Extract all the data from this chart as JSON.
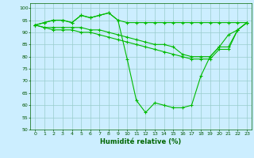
{
  "xlabel": "Humidité relative (%)",
  "background_color": "#cceeff",
  "grid_color": "#99cccc",
  "line_color": "#00bb00",
  "ylim": [
    50,
    102
  ],
  "xlim": [
    -0.5,
    23.5
  ],
  "yticks": [
    50,
    55,
    60,
    65,
    70,
    75,
    80,
    85,
    90,
    95,
    100
  ],
  "xticks": [
    0,
    1,
    2,
    3,
    4,
    5,
    6,
    7,
    8,
    9,
    10,
    11,
    12,
    13,
    14,
    15,
    16,
    17,
    18,
    19,
    20,
    21,
    22,
    23
  ],
  "series": [
    [
      93,
      94,
      95,
      95,
      94,
      97,
      96,
      97,
      98,
      95,
      94,
      94,
      94,
      94,
      94,
      94,
      94,
      94,
      94,
      94,
      94,
      94,
      94,
      94
    ],
    [
      93,
      94,
      95,
      95,
      94,
      97,
      96,
      97,
      98,
      95,
      79,
      62,
      57,
      61,
      60,
      59,
      59,
      60,
      72,
      80,
      84,
      89,
      91,
      94
    ],
    [
      93,
      92,
      92,
      92,
      92,
      92,
      91,
      91,
      90,
      89,
      88,
      87,
      86,
      85,
      85,
      84,
      81,
      80,
      80,
      80,
      84,
      84,
      91,
      94
    ],
    [
      93,
      92,
      91,
      91,
      91,
      90,
      90,
      89,
      88,
      87,
      86,
      85,
      84,
      83,
      82,
      81,
      80,
      79,
      79,
      79,
      83,
      83,
      91,
      94
    ]
  ]
}
